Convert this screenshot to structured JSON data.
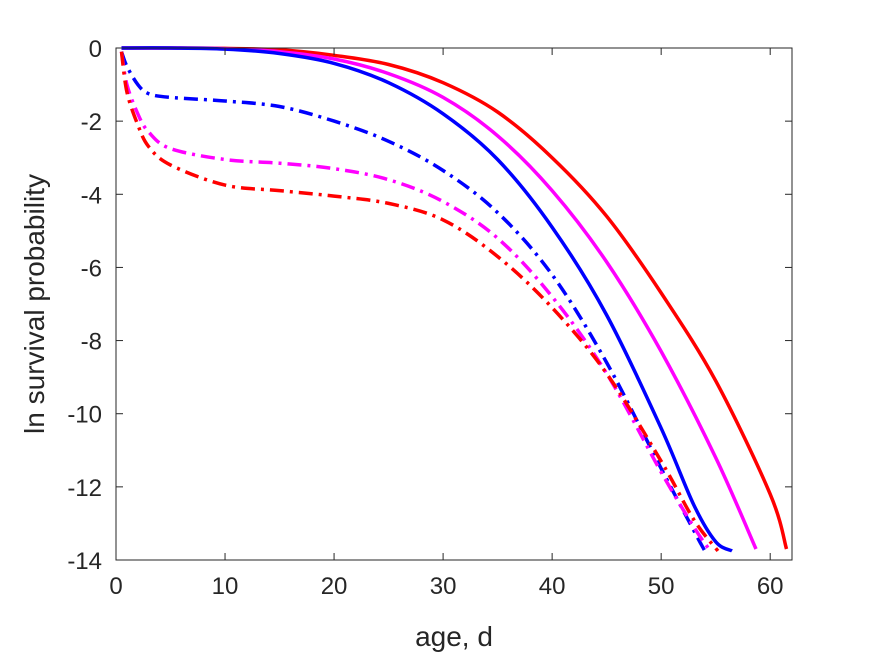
{
  "chart_data": {
    "type": "line",
    "title": "",
    "xlabel": "age, d",
    "ylabel": "ln survival probability",
    "xlim": [
      0,
      62
    ],
    "ylim": [
      -14,
      0
    ],
    "xticks": [
      0,
      10,
      20,
      30,
      40,
      50,
      60
    ],
    "yticks": [
      0,
      -2,
      -4,
      -6,
      -8,
      -10,
      -12,
      -14
    ],
    "xtick_labels": [
      "0",
      "10",
      "20",
      "30",
      "40",
      "50",
      "60"
    ],
    "ytick_labels": [
      "0",
      "-2",
      "-4",
      "-6",
      "-8",
      "-10",
      "-12",
      "-14"
    ],
    "grid": false,
    "legend": "none",
    "series": [
      {
        "color": "#ff0000",
        "style": "solid",
        "x": [
          0.5,
          5,
          10,
          15,
          20,
          25,
          30,
          35,
          40,
          45,
          50,
          55,
          60,
          61.5
        ],
        "y": [
          0,
          0,
          -0.01,
          -0.05,
          -0.2,
          -0.45,
          -0.95,
          -1.75,
          -3.0,
          -4.6,
          -6.7,
          -9.1,
          -12.2,
          -13.7
        ]
      },
      {
        "color": "#ff00ff",
        "style": "solid",
        "x": [
          0.5,
          5,
          10,
          15,
          20,
          25,
          30,
          35,
          40,
          45,
          50,
          55,
          58.7
        ],
        "y": [
          0,
          0,
          -0.02,
          -0.1,
          -0.3,
          -0.7,
          -1.35,
          -2.4,
          -3.9,
          -5.85,
          -8.3,
          -11.2,
          -13.7
        ]
      },
      {
        "color": "#0000ff",
        "style": "solid",
        "x": [
          0.5,
          5,
          10,
          15,
          20,
          25,
          30,
          35,
          40,
          45,
          50,
          53,
          55,
          56.5
        ],
        "y": [
          0,
          0,
          -0.03,
          -0.15,
          -0.42,
          -0.95,
          -1.8,
          -3.05,
          -4.9,
          -7.3,
          -10.4,
          -12.5,
          -13.5,
          -13.75
        ]
      },
      {
        "color": "#0000ff",
        "style": "dashdot",
        "x": [
          0.5,
          1,
          2,
          3,
          5,
          10,
          15,
          20,
          25,
          30,
          35,
          40,
          45,
          50,
          53,
          54
        ],
        "y": [
          -0.1,
          -0.5,
          -1.0,
          -1.25,
          -1.35,
          -1.45,
          -1.6,
          -2.0,
          -2.55,
          -3.35,
          -4.5,
          -6.2,
          -8.6,
          -11.5,
          -13.2,
          -13.75
        ]
      },
      {
        "color": "#ff00ff",
        "style": "dashdot",
        "x": [
          0.5,
          1,
          2,
          3,
          5,
          10,
          15,
          20,
          25,
          30,
          35,
          40,
          45,
          50,
          53,
          54.5
        ],
        "y": [
          -0.1,
          -1.0,
          -1.8,
          -2.3,
          -2.75,
          -3.05,
          -3.15,
          -3.3,
          -3.6,
          -4.2,
          -5.2,
          -6.8,
          -8.9,
          -11.6,
          -13.1,
          -13.75
        ]
      },
      {
        "color": "#ff0000",
        "style": "dashdot",
        "x": [
          0.5,
          1,
          2,
          3,
          5,
          10,
          15,
          20,
          25,
          30,
          35,
          40,
          45,
          50,
          53,
          55.2
        ],
        "y": [
          -0.1,
          -1.2,
          -2.1,
          -2.7,
          -3.2,
          -3.75,
          -3.9,
          -4.05,
          -4.25,
          -4.7,
          -5.7,
          -7.1,
          -8.9,
          -11.3,
          -12.9,
          -13.75
        ]
      }
    ]
  }
}
